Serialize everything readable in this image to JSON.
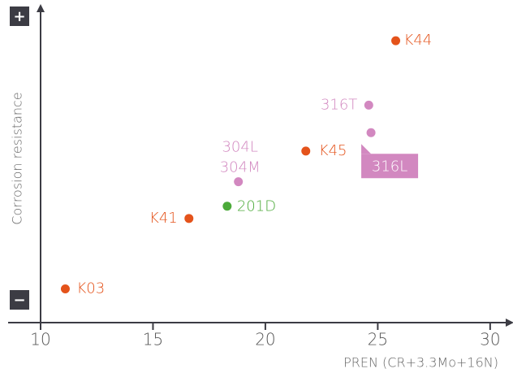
{
  "chart_data": {
    "type": "scatter",
    "x_label": "PREN (CR+3.3Mo+16N)",
    "y_label": "Corrosion resistance",
    "y_top_label": "+",
    "y_bottom_label": "−",
    "xlim": [
      10,
      30.8
    ],
    "xticks": [
      10,
      15,
      20,
      25,
      30
    ],
    "ylim": [
      0,
      100
    ],
    "x": [
      25.8,
      24.6,
      24.7,
      21.8,
      18.8,
      18.3,
      16.6,
      11.1
    ],
    "values": [
      92,
      71,
      62,
      56,
      46,
      38,
      34,
      11
    ],
    "labels": [
      "K44",
      "316T",
      "316L",
      "K45",
      [
        "304L",
        "304M"
      ],
      "201D",
      "K41",
      "K03"
    ],
    "colors": [
      "#e4531b",
      "#d288c0",
      "#d288c0",
      "#e4531b",
      "#d288c0",
      "#4caa3a",
      "#e4531b",
      "#e4531b"
    ]
  }
}
